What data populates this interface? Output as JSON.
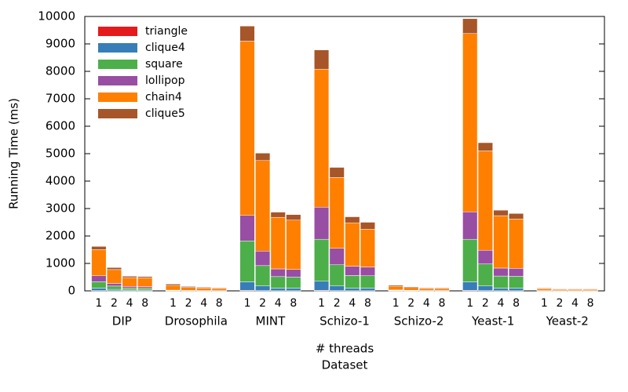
{
  "chart_data": {
    "type": "grouped-stacked-bar",
    "y_label": "Running Time (ms)",
    "x_label": "# threads",
    "x_label2": "Dataset",
    "groups": [
      "DIP",
      "Drosophila",
      "MINT",
      "Schizo-1",
      "Schizo-2",
      "Yeast-1",
      "Yeast-2"
    ],
    "categories": [
      "1",
      "2",
      "4",
      "8",
      "1",
      "2",
      "4",
      "8",
      "1",
      "2",
      "4",
      "8",
      "1",
      "2",
      "4",
      "8",
      "1",
      "2",
      "4",
      "8",
      "1",
      "2",
      "4",
      "8",
      "1",
      "2",
      "4",
      "8"
    ],
    "series": [
      {
        "name": "triangle",
        "color": "#e41a1c",
        "values": [
          10,
          5,
          3,
          3,
          1,
          1,
          1,
          1,
          20,
          10,
          5,
          5,
          20,
          10,
          5,
          5,
          1,
          1,
          1,
          1,
          20,
          10,
          5,
          5,
          1,
          1,
          1,
          1
        ]
      },
      {
        "name": "clique4",
        "color": "#377eb8",
        "values": [
          90,
          50,
          30,
          30,
          5,
          3,
          2,
          2,
          310,
          170,
          95,
          95,
          330,
          170,
          95,
          95,
          5,
          3,
          2,
          2,
          310,
          170,
          95,
          95,
          2,
          1,
          1,
          1
        ]
      },
      {
        "name": "square",
        "color": "#4daf4a",
        "values": [
          230,
          120,
          70,
          65,
          10,
          6,
          5,
          4,
          1490,
          740,
          420,
          400,
          1530,
          770,
          460,
          450,
          15,
          10,
          6,
          6,
          1550,
          800,
          440,
          430,
          5,
          3,
          3,
          3
        ]
      },
      {
        "name": "lollipop",
        "color": "#984ea3",
        "values": [
          220,
          100,
          60,
          55,
          10,
          5,
          4,
          3,
          930,
          530,
          280,
          280,
          1170,
          600,
          340,
          320,
          10,
          6,
          4,
          4,
          1000,
          500,
          290,
          290,
          3,
          2,
          2,
          2
        ]
      },
      {
        "name": "chain4",
        "color": "#ff7f00",
        "values": [
          950,
          500,
          320,
          320,
          170,
          110,
          90,
          75,
          6350,
          3300,
          1880,
          1800,
          5030,
          2580,
          1580,
          1380,
          140,
          100,
          72,
          72,
          6500,
          3620,
          1910,
          1800,
          65,
          45,
          45,
          45
        ]
      },
      {
        "name": "clique5",
        "color": "#a65628",
        "values": [
          120,
          75,
          50,
          50,
          50,
          35,
          30,
          25,
          550,
          270,
          190,
          200,
          700,
          370,
          220,
          250,
          39,
          30,
          25,
          25,
          540,
          300,
          200,
          200,
          24,
          18,
          18,
          18
        ]
      }
    ],
    "ylim": [
      0,
      10000
    ],
    "yticks": [
      0,
      1000,
      2000,
      3000,
      4000,
      5000,
      6000,
      7000,
      8000,
      9000,
      10000
    ],
    "legend": "upper-left"
  }
}
